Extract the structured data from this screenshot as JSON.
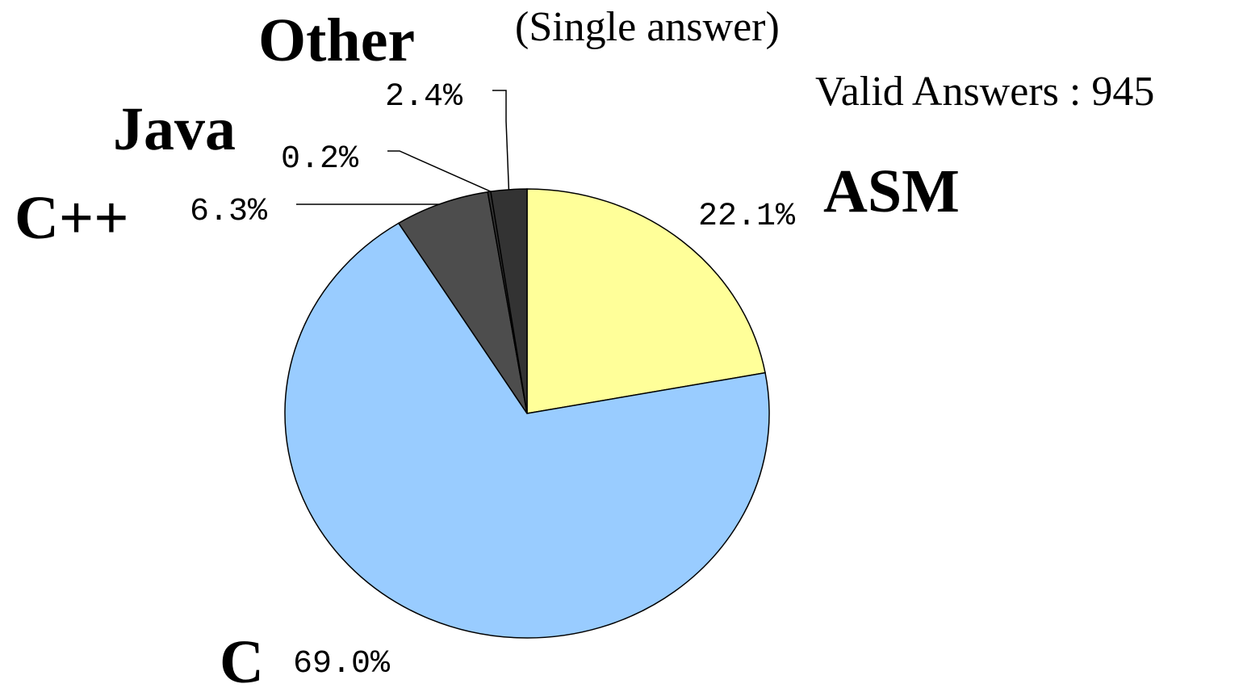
{
  "chart_data": {
    "type": "pie",
    "subtitle": "(Single answer)",
    "annotation": "Valid Answers : 945",
    "categories": [
      "ASM",
      "C",
      "C++",
      "Java",
      "Other"
    ],
    "values": [
      22.1,
      69.0,
      6.3,
      0.2,
      2.4
    ],
    "value_labels": [
      "22.1%",
      "69.0%",
      "6.3%",
      "0.2%",
      "2.4%"
    ],
    "colors": [
      "#ffff99",
      "#99ccff",
      "#4d4d4d",
      "#333333",
      "#333333"
    ]
  }
}
